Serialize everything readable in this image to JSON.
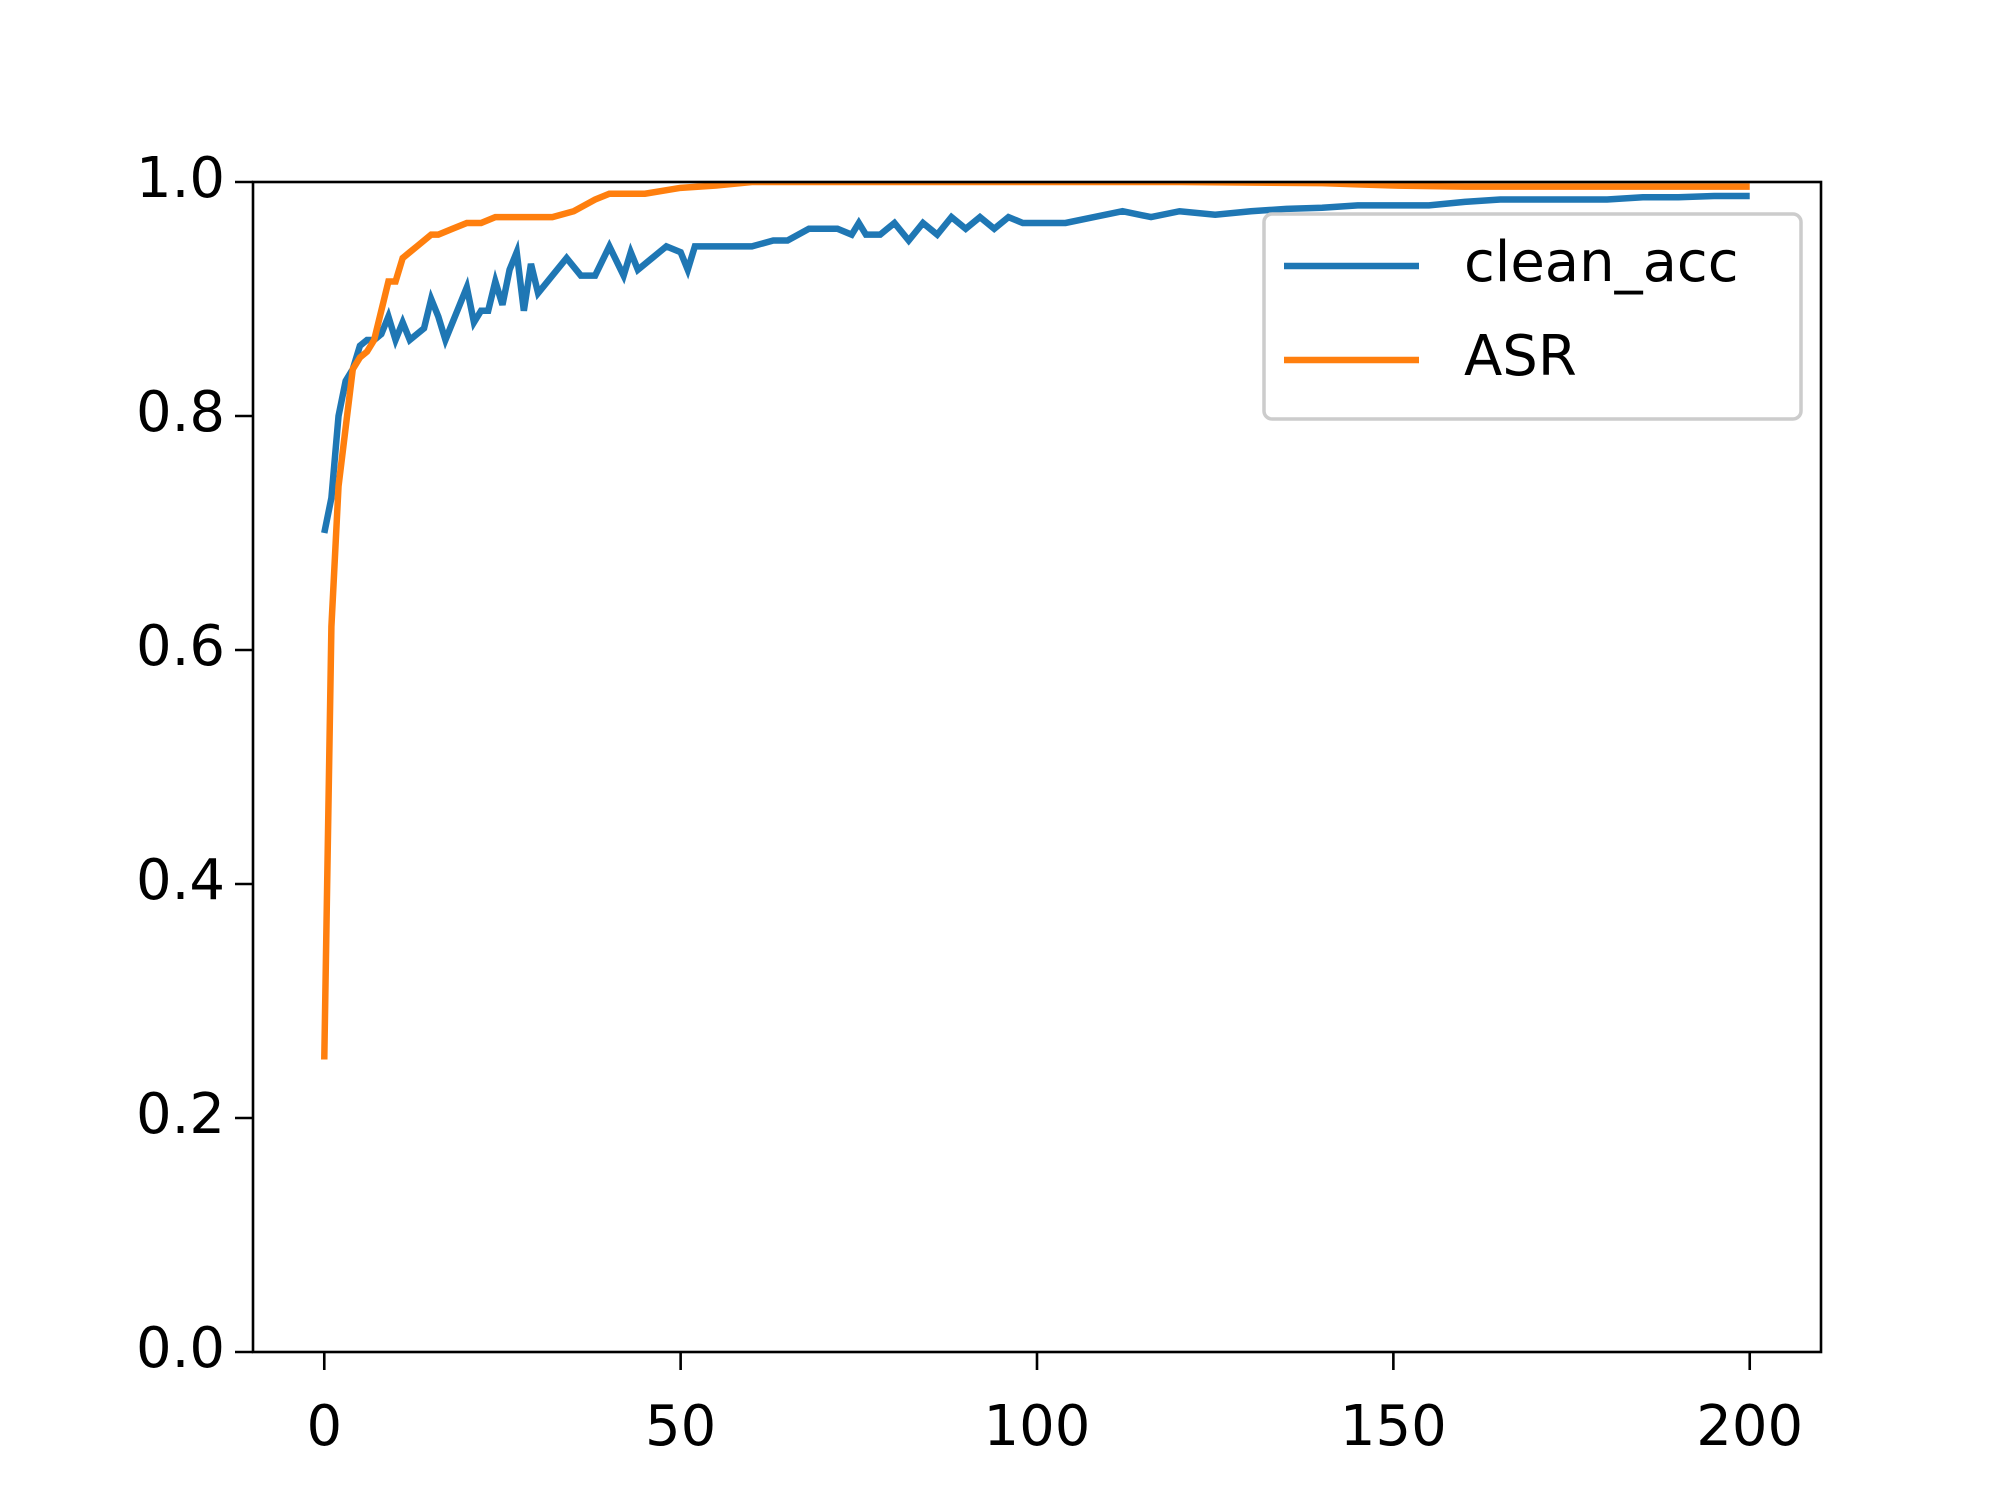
{
  "chart_data": {
    "type": "line",
    "series": [
      {
        "name": "clean_acc",
        "color": "#1f77b4",
        "x": [
          0,
          1,
          2,
          3,
          4,
          5,
          6,
          7,
          8,
          9,
          10,
          11,
          12,
          13,
          14,
          15,
          16,
          17,
          18,
          19,
          20,
          21,
          22,
          23,
          24,
          25,
          26,
          27,
          28,
          29,
          30,
          32,
          34,
          36,
          38,
          40,
          42,
          43,
          44,
          46,
          48,
          50,
          51,
          52,
          55,
          58,
          60,
          63,
          65,
          68,
          70,
          72,
          74,
          75,
          76,
          78,
          80,
          82,
          84,
          86,
          88,
          90,
          92,
          94,
          96,
          98,
          100,
          104,
          108,
          112,
          116,
          120,
          125,
          130,
          135,
          140,
          145,
          150,
          155,
          160,
          165,
          170,
          175,
          180,
          185,
          190,
          195,
          200
        ],
        "values": [
          0.7,
          0.73,
          0.8,
          0.83,
          0.84,
          0.86,
          0.865,
          0.865,
          0.87,
          0.885,
          0.865,
          0.88,
          0.865,
          0.87,
          0.875,
          0.9,
          0.885,
          0.865,
          0.88,
          0.895,
          0.91,
          0.88,
          0.89,
          0.89,
          0.915,
          0.895,
          0.925,
          0.94,
          0.89,
          0.93,
          0.905,
          0.92,
          0.935,
          0.92,
          0.92,
          0.945,
          0.92,
          0.94,
          0.925,
          0.935,
          0.945,
          0.94,
          0.925,
          0.945,
          0.945,
          0.945,
          0.945,
          0.95,
          0.95,
          0.96,
          0.96,
          0.96,
          0.955,
          0.965,
          0.955,
          0.955,
          0.965,
          0.95,
          0.965,
          0.955,
          0.97,
          0.96,
          0.97,
          0.96,
          0.97,
          0.965,
          0.965,
          0.965,
          0.97,
          0.975,
          0.97,
          0.975,
          0.972,
          0.975,
          0.977,
          0.978,
          0.98,
          0.98,
          0.98,
          0.983,
          0.985,
          0.985,
          0.985,
          0.985,
          0.987,
          0.987,
          0.988,
          0.988
        ]
      },
      {
        "name": "ASR",
        "color": "#ff7f0e",
        "x": [
          0,
          1,
          2,
          3,
          4,
          5,
          6,
          7,
          8,
          9,
          10,
          11,
          12,
          13,
          14,
          15,
          16,
          18,
          20,
          22,
          24,
          26,
          28,
          30,
          32,
          35,
          38,
          40,
          42,
          45,
          48,
          50,
          55,
          60,
          70,
          80,
          100,
          120,
          140,
          145,
          150,
          160,
          170,
          180,
          190,
          200
        ],
        "values": [
          0.25,
          0.62,
          0.74,
          0.79,
          0.84,
          0.85,
          0.855,
          0.865,
          0.89,
          0.915,
          0.915,
          0.935,
          0.94,
          0.945,
          0.95,
          0.955,
          0.955,
          0.96,
          0.965,
          0.965,
          0.97,
          0.97,
          0.97,
          0.97,
          0.97,
          0.975,
          0.985,
          0.99,
          0.99,
          0.99,
          0.993,
          0.995,
          0.997,
          1.0,
          1.0,
          1.0,
          1.0,
          1.0,
          0.999,
          0.998,
          0.997,
          0.996,
          0.996,
          0.996,
          0.996,
          0.996
        ]
      }
    ],
    "xlim": [
      -10,
      210
    ],
    "xticks": [
      0,
      50,
      100,
      150,
      200
    ],
    "ylim": [
      0,
      1
    ],
    "yticks": [
      {
        "value": 0,
        "label": "0.0"
      },
      {
        "value": 0.2,
        "label": "0.2"
      },
      {
        "value": 0.4,
        "label": "0.4"
      },
      {
        "value": 0.6,
        "label": "0.6"
      },
      {
        "value": 0.8,
        "label": "0.8"
      },
      {
        "value": 1,
        "label": "1.0"
      }
    ],
    "legend": "upper right",
    "grid": false
  }
}
